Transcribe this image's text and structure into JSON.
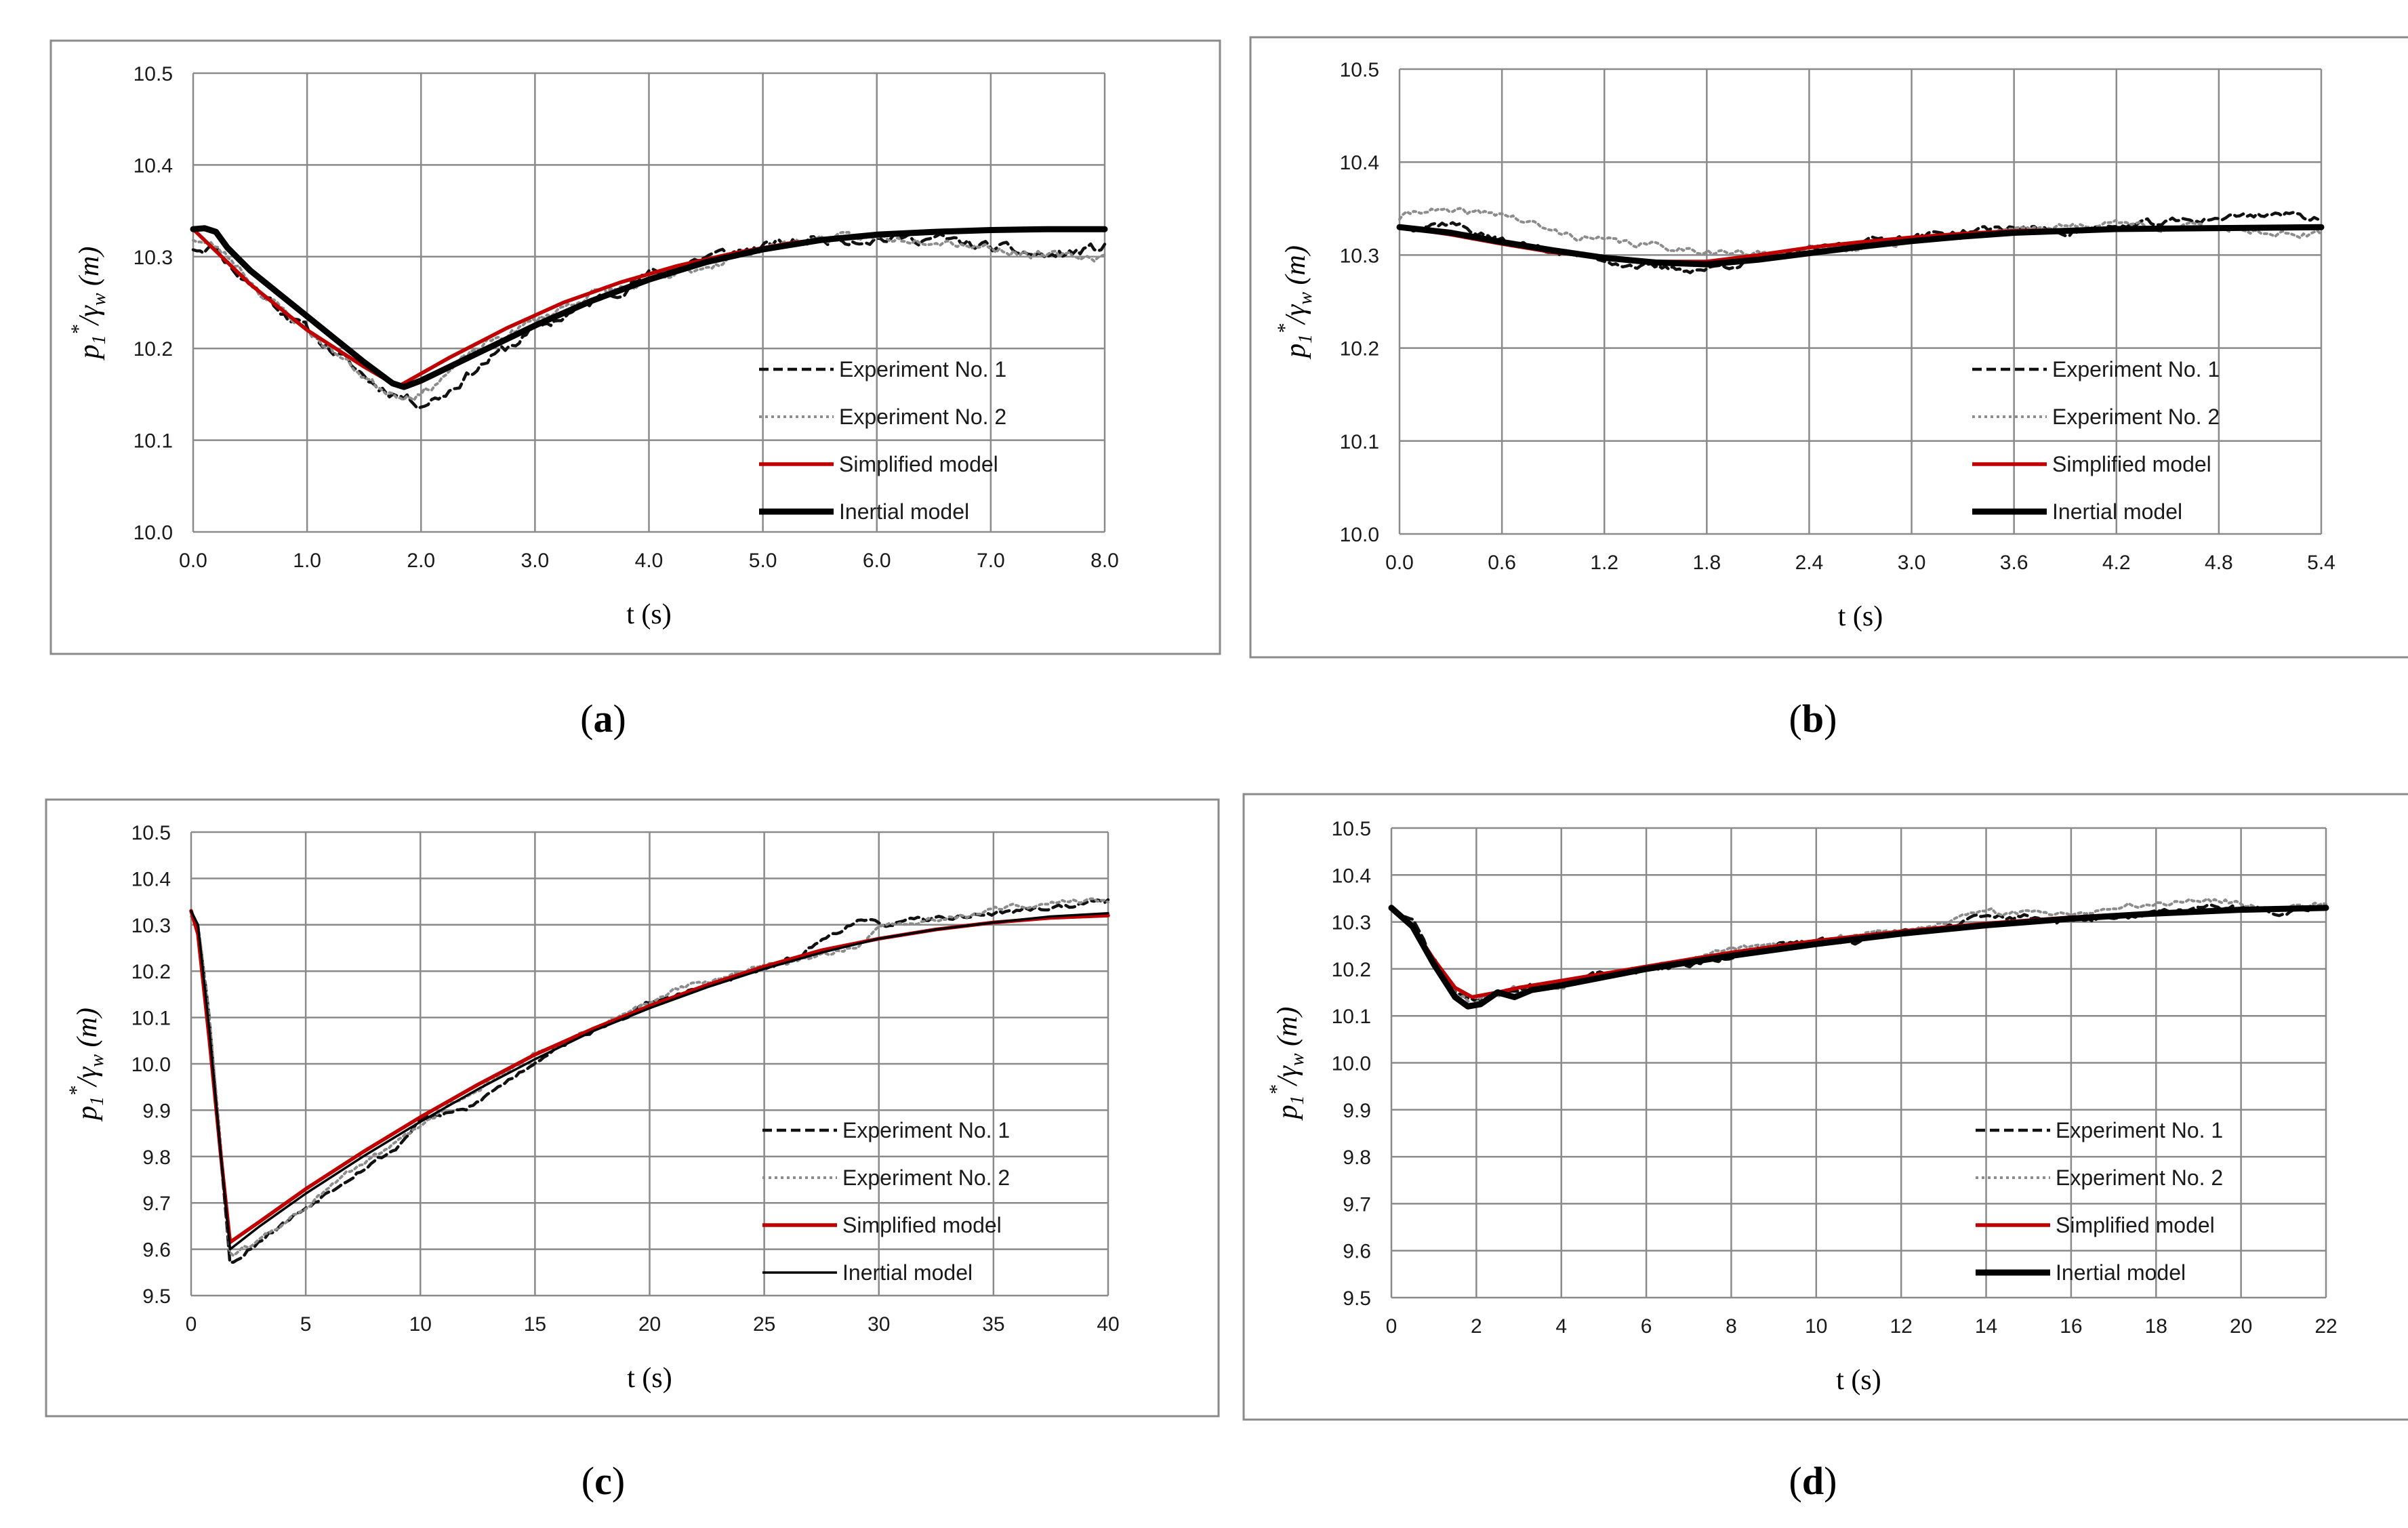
{
  "legend_labels": [
    "Experiment No. 1",
    "Experiment No. 2",
    "Simplified model",
    "Inertial model"
  ],
  "colors": {
    "exp1": "#111111",
    "exp2": "#8c8c8c",
    "simplified": "#c00000",
    "inertial": "#000000",
    "grid": "#8a8a8a",
    "frame": "#8a8a8a"
  },
  "chart_data": [
    {
      "id": "a",
      "panel_label": "a",
      "type": "line",
      "xlabel": "t (s)",
      "ylabel_parts": {
        "p": "p",
        "sub": "1",
        "sup": "*",
        "slash": "/γ",
        "wsub": "w",
        "unit": " (m)"
      },
      "xlim": [
        0,
        8
      ],
      "ylim": [
        10.0,
        10.5
      ],
      "xticks": [
        0,
        1,
        2,
        3,
        4,
        5,
        6,
        7,
        8
      ],
      "xtick_labels": [
        "0.0",
        "1.0",
        "2.0",
        "3.0",
        "4.0",
        "5.0",
        "6.0",
        "7.0",
        "8.0"
      ],
      "yticks": [
        10.0,
        10.1,
        10.2,
        10.3,
        10.4,
        10.5
      ],
      "ytick_labels": [
        "10.0",
        "10.1",
        "10.2",
        "10.3",
        "10.4",
        "10.5"
      ],
      "inertial_thick": true,
      "series": [
        {
          "name": "Experiment No. 1",
          "style": "exp1",
          "noise": 0.006,
          "seed": 11,
          "x": [
            0,
            0.2,
            0.4,
            0.6,
            0.8,
            1.0,
            1.2,
            1.4,
            1.6,
            1.8,
            2.0,
            2.2,
            2.5,
            3.0,
            3.5,
            4.0,
            4.5,
            5.0,
            5.5,
            6.0,
            6.5,
            7.0,
            7.5,
            8.0
          ],
          "y": [
            10.31,
            10.31,
            10.28,
            10.26,
            10.24,
            10.22,
            10.2,
            10.18,
            10.16,
            10.15,
            10.14,
            10.15,
            10.18,
            10.22,
            10.25,
            10.28,
            10.3,
            10.31,
            10.32,
            10.32,
            10.32,
            10.31,
            10.3,
            10.31
          ]
        },
        {
          "name": "Experiment No. 2",
          "style": "exp2",
          "noise": 0.005,
          "seed": 23,
          "x": [
            0,
            0.2,
            0.4,
            0.6,
            0.8,
            1.0,
            1.2,
            1.4,
            1.6,
            1.8,
            2.0,
            2.5,
            3.0,
            3.5,
            4.0,
            4.5,
            5.0,
            5.5,
            6.0,
            6.5,
            7.0,
            7.5,
            8.0
          ],
          "y": [
            10.32,
            10.31,
            10.29,
            10.26,
            10.24,
            10.22,
            10.2,
            10.18,
            10.16,
            10.15,
            10.15,
            10.2,
            10.23,
            10.26,
            10.27,
            10.29,
            10.31,
            10.32,
            10.32,
            10.32,
            10.31,
            10.3,
            10.3
          ]
        },
        {
          "name": "Simplified model",
          "style": "simplified",
          "x": [
            0,
            0.25,
            0.5,
            0.75,
            1.0,
            1.25,
            1.5,
            1.75,
            1.82,
            2.25,
            2.75,
            3.25,
            3.75,
            4.25,
            4.75,
            5.25,
            5.75,
            6.25,
            6.75,
            7.25,
            8.0
          ],
          "y": [
            10.33,
            10.3,
            10.27,
            10.245,
            10.22,
            10.2,
            10.18,
            10.162,
            10.16,
            10.19,
            10.222,
            10.25,
            10.272,
            10.29,
            10.304,
            10.315,
            10.322,
            10.326,
            10.328,
            10.329,
            10.33
          ]
        },
        {
          "name": "Inertial model",
          "style": "inertial",
          "x": [
            0,
            0.1,
            0.2,
            0.3,
            0.5,
            0.75,
            1.0,
            1.25,
            1.5,
            1.75,
            1.85,
            2.0,
            2.5,
            3.0,
            3.5,
            4.0,
            4.5,
            5.0,
            5.5,
            6.0,
            6.5,
            7.0,
            7.5,
            8.0
          ],
          "y": [
            10.33,
            10.331,
            10.327,
            10.31,
            10.285,
            10.26,
            10.235,
            10.21,
            10.185,
            10.162,
            10.158,
            10.165,
            10.195,
            10.225,
            10.252,
            10.275,
            10.294,
            10.308,
            10.318,
            10.324,
            10.327,
            10.329,
            10.33,
            10.33
          ]
        }
      ]
    },
    {
      "id": "b",
      "panel_label": "b",
      "type": "line",
      "xlabel": "t (s)",
      "ylabel_parts": {
        "p": "p",
        "sub": "1",
        "sup": "*",
        "slash": "/γ",
        "wsub": "w",
        "unit": " (m)"
      },
      "xlim": [
        0,
        5.4
      ],
      "ylim": [
        10.0,
        10.5
      ],
      "xticks": [
        0,
        0.6,
        1.2,
        1.8,
        2.4,
        3.0,
        3.6,
        4.2,
        4.8,
        5.4
      ],
      "xtick_labels": [
        "0.0",
        "0.6",
        "1.2",
        "1.8",
        "2.4",
        "3.0",
        "3.6",
        "4.2",
        "4.8",
        "5.4"
      ],
      "yticks": [
        10.0,
        10.1,
        10.2,
        10.3,
        10.4,
        10.5
      ],
      "ytick_labels": [
        "10.0",
        "10.1",
        "10.2",
        "10.3",
        "10.4",
        "10.5"
      ],
      "inertial_thick": true,
      "series": [
        {
          "name": "Experiment No. 1",
          "style": "exp1",
          "noise": 0.004,
          "seed": 37,
          "x": [
            0,
            0.3,
            0.6,
            0.9,
            1.2,
            1.5,
            1.8,
            2.1,
            2.4,
            2.7,
            3.0,
            3.3,
            3.6,
            3.9,
            4.2,
            4.5,
            4.8,
            5.1,
            5.4
          ],
          "y": [
            10.33,
            10.335,
            10.315,
            10.305,
            10.295,
            10.285,
            10.285,
            10.295,
            10.305,
            10.315,
            10.32,
            10.325,
            10.33,
            10.325,
            10.33,
            10.335,
            10.34,
            10.345,
            10.34
          ]
        },
        {
          "name": "Experiment No. 2",
          "style": "exp2",
          "noise": 0.004,
          "seed": 41,
          "x": [
            0,
            0.15,
            0.3,
            0.6,
            0.9,
            1.2,
            1.5,
            1.8,
            2.1,
            2.4,
            2.7,
            3.0,
            3.3,
            3.6,
            3.9,
            4.2,
            4.5,
            4.8,
            5.1,
            5.4
          ],
          "y": [
            10.34,
            10.35,
            10.345,
            10.345,
            10.325,
            10.315,
            10.31,
            10.305,
            10.3,
            10.305,
            10.31,
            10.315,
            10.32,
            10.33,
            10.33,
            10.335,
            10.33,
            10.33,
            10.325,
            10.32
          ]
        },
        {
          "name": "Simplified model",
          "style": "simplified",
          "x": [
            0,
            0.3,
            0.6,
            0.9,
            1.2,
            1.5,
            1.8,
            2.1,
            2.4,
            2.7,
            3.0,
            3.3,
            3.6,
            4.2,
            4.8,
            5.4
          ],
          "y": [
            10.33,
            10.322,
            10.312,
            10.303,
            10.297,
            10.293,
            10.293,
            10.3,
            10.308,
            10.314,
            10.319,
            10.323,
            10.326,
            10.328,
            10.329,
            10.33
          ]
        },
        {
          "name": "Inertial model",
          "style": "inertial",
          "x": [
            0,
            0.3,
            0.6,
            0.9,
            1.2,
            1.5,
            1.8,
            2.1,
            2.4,
            2.7,
            3.0,
            3.3,
            3.6,
            4.2,
            4.8,
            5.4
          ],
          "y": [
            10.33,
            10.324,
            10.314,
            10.305,
            10.297,
            10.292,
            10.29,
            10.295,
            10.302,
            10.309,
            10.315,
            10.32,
            10.324,
            10.328,
            10.329,
            10.33
          ]
        }
      ]
    },
    {
      "id": "c",
      "panel_label": "c",
      "type": "line",
      "xlabel": "t (s)",
      "ylabel_parts": {
        "p": "p",
        "sub": "1",
        "sup": "*",
        "slash": "/γ",
        "wsub": "w",
        "unit": " (m)"
      },
      "xlim": [
        0,
        40
      ],
      "ylim": [
        9.5,
        10.5
      ],
      "xticks": [
        0,
        5,
        10,
        15,
        20,
        25,
        30,
        35,
        40
      ],
      "xtick_labels": [
        "0",
        "5",
        "10",
        "15",
        "20",
        "25",
        "30",
        "35",
        "40"
      ],
      "yticks": [
        9.5,
        9.6,
        9.7,
        9.8,
        9.9,
        10.0,
        10.1,
        10.2,
        10.3,
        10.4,
        10.5
      ],
      "ytick_labels": [
        "9.5",
        "9.6",
        "9.7",
        "9.8",
        "9.9",
        "10.0",
        "10.1",
        "10.2",
        "10.3",
        "10.4",
        "10.5"
      ],
      "inertial_thick": false,
      "series": [
        {
          "name": "Experiment No. 1",
          "style": "exp1",
          "noise": 0.006,
          "seed": 53,
          "x": [
            0,
            0.3,
            0.8,
            1.3,
            1.7,
            2.0,
            3.0,
            5.0,
            7.0,
            9.0,
            10.0,
            11.0,
            12.0,
            14.0,
            16.0,
            18.0,
            20.0,
            22.0,
            24.0,
            26.0,
            27.0,
            28.0,
            29.0,
            30.0,
            32.0,
            34.0,
            36.0,
            38.0,
            40.0
          ],
          "y": [
            10.33,
            10.3,
            10.1,
            9.8,
            9.57,
            9.58,
            9.62,
            9.69,
            9.76,
            9.82,
            9.88,
            9.89,
            9.9,
            9.97,
            10.04,
            10.08,
            10.13,
            10.16,
            10.19,
            10.22,
            10.25,
            10.28,
            10.31,
            10.3,
            10.31,
            10.32,
            10.33,
            10.34,
            10.35
          ]
        },
        {
          "name": "Experiment No. 2",
          "style": "exp2",
          "noise": 0.006,
          "seed": 61,
          "x": [
            0,
            0.3,
            0.8,
            1.3,
            1.7,
            2.0,
            3.0,
            5.0,
            7.0,
            9.0,
            11.0,
            13.0,
            15.0,
            17.0,
            19.0,
            21.0,
            23.0,
            25.0,
            27.0,
            28.0,
            29.0,
            30.0,
            32.0,
            34.0,
            36.0,
            38.0,
            40.0
          ],
          "y": [
            10.32,
            10.3,
            10.1,
            9.82,
            9.59,
            9.59,
            9.62,
            9.69,
            9.77,
            9.83,
            9.9,
            9.96,
            10.02,
            10.06,
            10.11,
            10.16,
            10.18,
            10.21,
            10.23,
            10.24,
            10.25,
            10.29,
            10.31,
            10.32,
            10.34,
            10.35,
            10.35
          ]
        },
        {
          "name": "Simplified model",
          "style": "simplified",
          "x": [
            0,
            0.3,
            0.8,
            1.3,
            1.7,
            3.0,
            5.0,
            7.5,
            10.0,
            12.5,
            15.0,
            17.5,
            20.0,
            22.5,
            25.0,
            27.5,
            30.0,
            32.5,
            35.0,
            37.5,
            40.0
          ],
          "y": [
            10.33,
            10.28,
            10.05,
            9.8,
            9.615,
            9.66,
            9.73,
            9.81,
            9.885,
            9.955,
            10.02,
            10.075,
            10.125,
            10.17,
            10.21,
            10.245,
            10.27,
            10.29,
            10.305,
            10.315,
            10.32
          ]
        },
        {
          "name": "Inertial model",
          "style": "inertial",
          "x": [
            0,
            0.3,
            0.8,
            1.3,
            1.7,
            3.0,
            5.0,
            7.5,
            10.0,
            12.5,
            15.0,
            17.5,
            20.0,
            22.5,
            25.0,
            27.5,
            30.0,
            32.5,
            35.0,
            37.5,
            40.0
          ],
          "y": [
            10.33,
            10.3,
            10.07,
            9.8,
            9.6,
            9.65,
            9.72,
            9.8,
            9.875,
            9.945,
            10.01,
            10.07,
            10.12,
            10.165,
            10.205,
            10.24,
            10.27,
            10.29,
            10.305,
            10.318,
            10.325
          ]
        }
      ]
    },
    {
      "id": "d",
      "panel_label": "d",
      "type": "line",
      "xlabel": "t (s)",
      "ylabel_parts": {
        "p": "p",
        "sub": "1",
        "sup": "*",
        "slash": "/γ",
        "wsub": "w",
        "unit": " (m)"
      },
      "xlim": [
        0,
        22
      ],
      "ylim": [
        9.5,
        10.5
      ],
      "xticks": [
        0,
        2,
        4,
        6,
        8,
        10,
        12,
        14,
        16,
        18,
        20,
        22
      ],
      "xtick_labels": [
        "0",
        "2",
        "4",
        "6",
        "8",
        "10",
        "12",
        "14",
        "16",
        "18",
        "20",
        "22"
      ],
      "yticks": [
        9.5,
        9.6,
        9.7,
        9.8,
        9.9,
        10.0,
        10.1,
        10.2,
        10.3,
        10.4,
        10.5
      ],
      "ytick_labels": [
        "9.5",
        "9.6",
        "9.7",
        "9.8",
        "9.9",
        "10.0",
        "10.1",
        "10.2",
        "10.3",
        "10.4",
        "10.5"
      ],
      "inertial_thick": true,
      "series": [
        {
          "name": "Experiment No. 1",
          "style": "exp1",
          "noise": 0.007,
          "seed": 71,
          "x": [
            0,
            0.5,
            1.0,
            1.5,
            1.9,
            2.3,
            3.0,
            4.0,
            5.0,
            6.0,
            7.0,
            8.0,
            9.0,
            10.0,
            11.0,
            12.0,
            13.0,
            14.0,
            15.0,
            16.0,
            17.0,
            18.0,
            19.0,
            20.0,
            21.0,
            22.0
          ],
          "y": [
            10.33,
            10.3,
            10.22,
            10.15,
            10.13,
            10.14,
            10.16,
            10.17,
            10.19,
            10.2,
            10.21,
            10.23,
            10.25,
            10.26,
            10.26,
            10.28,
            10.29,
            10.31,
            10.31,
            10.3,
            10.31,
            10.32,
            10.33,
            10.33,
            10.32,
            10.33
          ]
        },
        {
          "name": "Experiment No. 2",
          "style": "exp2",
          "noise": 0.007,
          "seed": 83,
          "x": [
            0,
            0.5,
            1.0,
            1.5,
            1.9,
            2.3,
            3.0,
            4.0,
            5.0,
            6.0,
            7.0,
            8.0,
            9.0,
            10.0,
            11.0,
            12.0,
            13.0,
            14.0,
            15.0,
            16.0,
            17.0,
            18.0,
            19.0,
            20.0,
            21.0,
            22.0
          ],
          "y": [
            10.33,
            10.29,
            10.21,
            10.15,
            10.13,
            10.14,
            10.16,
            10.17,
            10.19,
            10.2,
            10.22,
            10.24,
            10.25,
            10.26,
            10.27,
            10.28,
            10.3,
            10.32,
            10.32,
            10.32,
            10.33,
            10.34,
            10.35,
            10.34,
            10.33,
            10.34
          ]
        },
        {
          "name": "Simplified model",
          "style": "simplified",
          "x": [
            0,
            0.5,
            1.0,
            1.5,
            1.9,
            2.5,
            3.0,
            4.0,
            6.0,
            8.0,
            10.0,
            12.0,
            14.0,
            16.0,
            18.0,
            20.0,
            22.0
          ],
          "y": [
            10.33,
            10.29,
            10.22,
            10.16,
            10.14,
            10.15,
            10.16,
            10.175,
            10.205,
            10.235,
            10.26,
            10.28,
            10.297,
            10.31,
            10.32,
            10.327,
            10.332
          ]
        },
        {
          "name": "Inertial model",
          "style": "inertial",
          "x": [
            0,
            0.5,
            1.0,
            1.5,
            1.8,
            2.1,
            2.5,
            2.9,
            3.3,
            4.0,
            6.0,
            8.0,
            10.0,
            12.0,
            14.0,
            16.0,
            18.0,
            20.0,
            22.0
          ],
          "y": [
            10.33,
            10.29,
            10.21,
            10.14,
            10.12,
            10.125,
            10.15,
            10.14,
            10.155,
            10.165,
            10.2,
            10.228,
            10.253,
            10.275,
            10.293,
            10.307,
            10.318,
            10.326,
            10.33
          ]
        }
      ]
    }
  ]
}
